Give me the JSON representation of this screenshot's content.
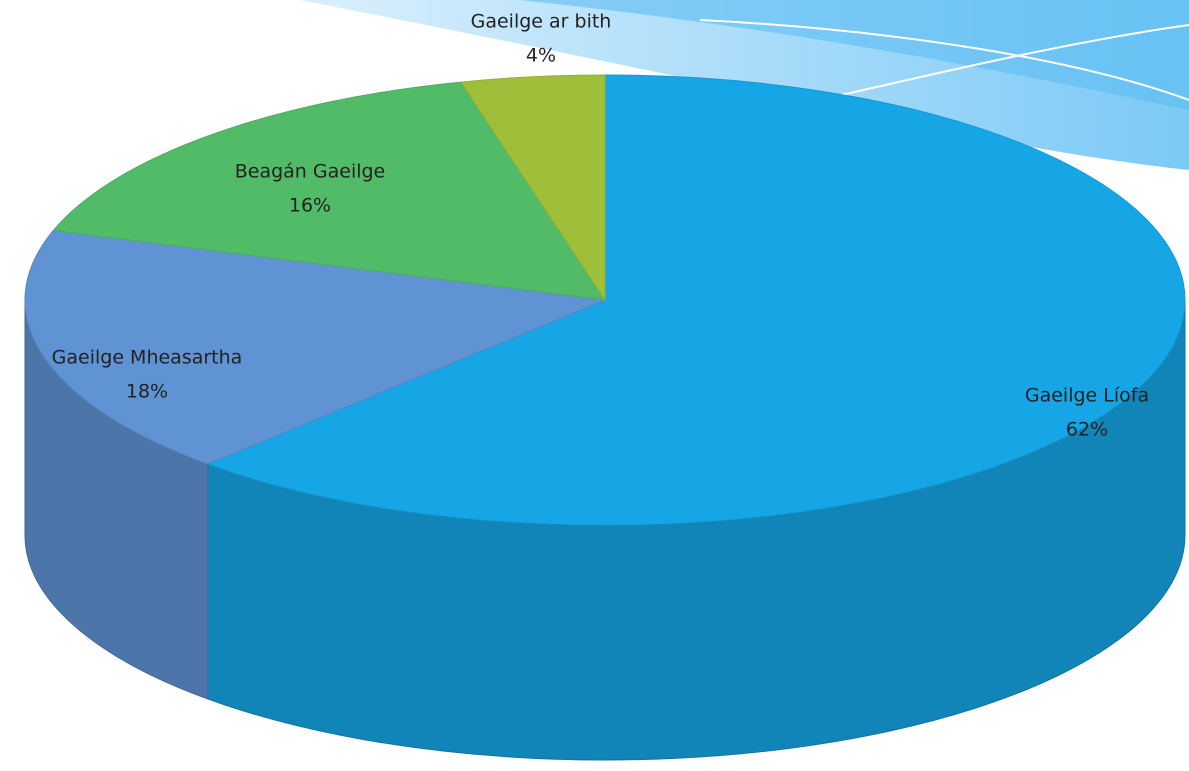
{
  "chart_data": {
    "type": "pie3d",
    "categories": [
      "Gaeilge Líofa",
      "Gaeilge Mheasartha",
      "Beagán Gaeilge",
      "Gaeilge ar bith"
    ],
    "values": [
      62,
      18,
      16,
      4
    ],
    "value_labels": [
      "62%",
      "18%",
      "16%",
      "4%"
    ],
    "colors": [
      "#16a6e6",
      "#5f93d3",
      "#52bb68",
      "#9fbf3a"
    ]
  }
}
